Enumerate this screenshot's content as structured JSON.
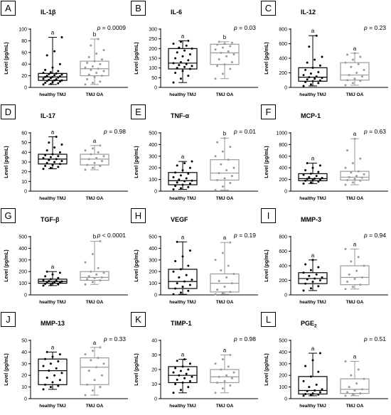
{
  "figure": {
    "group_labels": [
      "healthy TMJ",
      "TMJ OA"
    ],
    "colors": {
      "healthy": "#000000",
      "oa": "#9a9a9a"
    }
  },
  "chart_data": [
    {
      "type": "boxplot",
      "panel": "A",
      "title": "IL-1β",
      "ylabel": "Level (pg/mL)",
      "pvalue": "p = 0.0009",
      "ylim": [
        0,
        100
      ],
      "yticks": [
        0,
        20,
        40,
        60,
        80,
        100
      ],
      "letters": [
        "a",
        "b"
      ],
      "series": [
        {
          "name": "healthy TMJ",
          "whisker_low": 5,
          "q1": 12,
          "median": 18,
          "q3": 24,
          "whisker_high": 86,
          "points": [
            5,
            6,
            7,
            8,
            9,
            10,
            11,
            12,
            12,
            13,
            14,
            15,
            16,
            17,
            18,
            18,
            19,
            20,
            21,
            22,
            23,
            24,
            25,
            26,
            28,
            30,
            34,
            40,
            55,
            62,
            86
          ]
        },
        {
          "name": "TMJ OA",
          "whisker_low": 5,
          "q1": 20,
          "median": 32,
          "q3": 45,
          "whisker_high": 83,
          "points": [
            5,
            8,
            10,
            14,
            18,
            20,
            22,
            25,
            28,
            30,
            32,
            34,
            36,
            40,
            42,
            45,
            48,
            52,
            58,
            64,
            72,
            83
          ]
        }
      ]
    },
    {
      "type": "boxplot",
      "panel": "B",
      "title": "IL-6",
      "ylabel": "Level (pg/mL)",
      "pvalue": "p = 0.03",
      "ylim": [
        0,
        300
      ],
      "yticks": [
        0,
        50,
        100,
        150,
        200,
        250,
        300
      ],
      "letters": [
        "a",
        "b"
      ],
      "series": [
        {
          "name": "healthy TMJ",
          "whisker_low": 25,
          "q1": 95,
          "median": 125,
          "q3": 200,
          "whisker_high": 240,
          "points": [
            25,
            45,
            60,
            75,
            85,
            95,
            100,
            105,
            110,
            115,
            120,
            125,
            130,
            140,
            150,
            160,
            170,
            180,
            190,
            200,
            205,
            215,
            225,
            235,
            240
          ]
        },
        {
          "name": "TMJ OA",
          "whisker_low": 45,
          "q1": 118,
          "median": 178,
          "q3": 222,
          "whisker_high": 235,
          "points": [
            45,
            70,
            95,
            110,
            118,
            130,
            145,
            160,
            170,
            178,
            185,
            195,
            205,
            212,
            220,
            225,
            230,
            235
          ]
        }
      ]
    },
    {
      "type": "boxplot",
      "panel": "C",
      "title": "IL-12",
      "ylabel": "Level (pg/mL)",
      "pvalue": "p = 0.23",
      "ylim": [
        0,
        800
      ],
      "yticks": [
        0,
        200,
        400,
        600,
        800
      ],
      "letters": [
        "a",
        "a"
      ],
      "series": [
        {
          "name": "healthy TMJ",
          "whisker_low": 20,
          "q1": 85,
          "median": 140,
          "q3": 270,
          "whisker_high": 710,
          "points": [
            20,
            40,
            60,
            75,
            85,
            95,
            110,
            120,
            130,
            140,
            150,
            170,
            190,
            210,
            240,
            270,
            300,
            340,
            380,
            420,
            560,
            710
          ]
        },
        {
          "name": "TMJ OA",
          "whisker_low": 30,
          "q1": 100,
          "median": 170,
          "q3": 340,
          "whisker_high": 470,
          "points": [
            30,
            60,
            90,
            100,
            120,
            150,
            170,
            200,
            240,
            280,
            320,
            340,
            380,
            420,
            450,
            470
          ]
        }
      ]
    },
    {
      "type": "boxplot",
      "panel": "D",
      "title": "IL-17",
      "ylabel": "Level (pg/mL)",
      "pvalue": "p = 0.98",
      "ylim": [
        0,
        60
      ],
      "yticks": [
        0,
        10,
        20,
        30,
        40,
        50,
        60
      ],
      "letters": [
        "a",
        "a"
      ],
      "series": [
        {
          "name": "healthy TMJ",
          "whisker_low": 23,
          "q1": 28,
          "median": 33,
          "q3": 38,
          "whisker_high": 56,
          "points": [
            23,
            24,
            25,
            26,
            27,
            28,
            29,
            30,
            31,
            32,
            33,
            34,
            35,
            36,
            37,
            38,
            40,
            42,
            45,
            48,
            50,
            56
          ]
        },
        {
          "name": "TMJ OA",
          "whisker_low": 22,
          "q1": 27,
          "median": 33,
          "q3": 38,
          "whisker_high": 47,
          "points": [
            22,
            24,
            26,
            27,
            29,
            31,
            33,
            34,
            36,
            38,
            40,
            42,
            44,
            47
          ]
        }
      ]
    },
    {
      "type": "boxplot",
      "panel": "E",
      "title": "TNF-α",
      "ylabel": "Level (pg/mL)",
      "pvalue": "p = 0.01",
      "ylim": [
        0,
        500
      ],
      "yticks": [
        0,
        100,
        200,
        300,
        400,
        500
      ],
      "letters": [
        "a",
        "b"
      ],
      "series": [
        {
          "name": "healthy TMJ",
          "whisker_low": 15,
          "q1": 55,
          "median": 90,
          "q3": 160,
          "whisker_high": 255,
          "points": [
            15,
            25,
            35,
            45,
            55,
            65,
            75,
            85,
            90,
            100,
            110,
            120,
            135,
            150,
            160,
            180,
            200,
            220,
            240,
            255
          ]
        },
        {
          "name": "TMJ OA",
          "whisker_low": 10,
          "q1": 95,
          "median": 155,
          "q3": 270,
          "whisker_high": 455,
          "points": [
            10,
            40,
            70,
            95,
            110,
            130,
            155,
            180,
            200,
            230,
            270,
            300,
            340,
            380,
            420,
            455
          ]
        }
      ]
    },
    {
      "type": "boxplot",
      "panel": "F",
      "title": "MCP-1",
      "ylabel": "Level (pg/mL)",
      "pvalue": "p = 0.63",
      "ylim": [
        0,
        1000
      ],
      "yticks": [
        0,
        200,
        400,
        600,
        800,
        1000
      ],
      "letters": [
        "a",
        "a"
      ],
      "series": [
        {
          "name": "healthy TMJ",
          "whisker_low": 130,
          "q1": 180,
          "median": 215,
          "q3": 300,
          "whisker_high": 480,
          "points": [
            130,
            150,
            165,
            180,
            190,
            200,
            210,
            215,
            225,
            240,
            260,
            280,
            300,
            330,
            360,
            400,
            440,
            480
          ]
        },
        {
          "name": "TMJ OA",
          "whisker_low": 110,
          "q1": 190,
          "median": 240,
          "q3": 340,
          "whisker_high": 900,
          "points": [
            110,
            150,
            180,
            190,
            210,
            230,
            240,
            260,
            290,
            320,
            340,
            400,
            480,
            560,
            700,
            900
          ]
        }
      ]
    },
    {
      "type": "boxplot",
      "panel": "G",
      "title": "TGF-β",
      "ylabel": "Level (pg/mL)",
      "pvalue": "p < 0.0001",
      "ylim": [
        0,
        500
      ],
      "yticks": [
        0,
        100,
        200,
        300,
        400,
        500
      ],
      "letters": [
        "a",
        "b"
      ],
      "series": [
        {
          "name": "healthy TMJ",
          "whisker_low": 80,
          "q1": 100,
          "median": 115,
          "q3": 135,
          "whisker_high": 200,
          "points": [
            80,
            85,
            90,
            95,
            100,
            105,
            110,
            112,
            115,
            118,
            122,
            128,
            135,
            145,
            160,
            175,
            190,
            200
          ]
        },
        {
          "name": "TMJ OA",
          "whisker_low": 90,
          "q1": 125,
          "median": 150,
          "q3": 200,
          "whisker_high": 460,
          "points": [
            90,
            110,
            125,
            135,
            145,
            150,
            160,
            175,
            190,
            200,
            230,
            280,
            350,
            460
          ]
        }
      ]
    },
    {
      "type": "boxplot",
      "panel": "H",
      "title": "VEGF",
      "ylabel": "Level (pg/mL)",
      "pvalue": "p = 0.19",
      "ylim": [
        0,
        500
      ],
      "yticks": [
        0,
        100,
        200,
        300,
        400,
        500
      ],
      "letters": [
        "a",
        "a"
      ],
      "series": [
        {
          "name": "healthy TMJ",
          "whisker_low": 5,
          "q1": 55,
          "median": 115,
          "q3": 220,
          "whisker_high": 455,
          "points": [
            5,
            20,
            35,
            55,
            70,
            85,
            100,
            115,
            130,
            150,
            170,
            200,
            220,
            250,
            290,
            330,
            380,
            455
          ]
        },
        {
          "name": "TMJ OA",
          "whisker_low": 5,
          "q1": 25,
          "median": 100,
          "q3": 180,
          "whisker_high": 450,
          "points": [
            5,
            15,
            25,
            45,
            70,
            100,
            120,
            150,
            180,
            210,
            250,
            300,
            360,
            450
          ]
        }
      ]
    },
    {
      "type": "boxplot",
      "panel": "I",
      "title": "MMP-3",
      "ylabel": "Level (pg/mL)",
      "pvalue": "p = 0.94",
      "ylim": [
        0,
        800
      ],
      "yticks": [
        0,
        200,
        400,
        600,
        800
      ],
      "letters": [
        "a",
        "a"
      ],
      "series": [
        {
          "name": "healthy TMJ",
          "whisker_low": 60,
          "q1": 155,
          "median": 225,
          "q3": 305,
          "whisker_high": 480,
          "points": [
            60,
            90,
            120,
            155,
            180,
            200,
            215,
            225,
            240,
            260,
            280,
            305,
            340,
            380,
            420,
            480
          ]
        },
        {
          "name": "TMJ OA",
          "whisker_low": 80,
          "q1": 140,
          "median": 240,
          "q3": 400,
          "whisker_high": 630,
          "points": [
            80,
            110,
            140,
            180,
            220,
            240,
            280,
            330,
            400,
            460,
            520,
            630
          ]
        }
      ]
    },
    {
      "type": "boxplot",
      "panel": "J",
      "title": "MMP-13",
      "ylabel": "Level (pg/mL)",
      "pvalue": "p = 0.33",
      "ylim": [
        0,
        50
      ],
      "yticks": [
        0,
        10,
        20,
        30,
        40,
        50
      ],
      "letters": [
        "a",
        "a"
      ],
      "series": [
        {
          "name": "healthy TMJ",
          "whisker_low": 8,
          "q1": 12,
          "median": 24,
          "q3": 34,
          "whisker_high": 40,
          "points": [
            8,
            10,
            11,
            12,
            14,
            16,
            18,
            20,
            22,
            24,
            26,
            28,
            30,
            32,
            34,
            36,
            38,
            40
          ]
        },
        {
          "name": "TMJ OA",
          "whisker_low": 3,
          "q1": 12,
          "median": 27,
          "q3": 35,
          "whisker_high": 44,
          "points": [
            3,
            7,
            10,
            12,
            16,
            20,
            24,
            27,
            30,
            33,
            35,
            38,
            41,
            44
          ]
        }
      ]
    },
    {
      "type": "boxplot",
      "panel": "K",
      "title": "TIMP-1",
      "ylabel": "Level (pg/mL)",
      "pvalue": "p = 0.98",
      "ylim": [
        0,
        40
      ],
      "yticks": [
        0,
        10,
        20,
        30,
        40
      ],
      "letters": [
        "a",
        "a"
      ],
      "series": [
        {
          "name": "healthy TMJ",
          "whisker_low": 4,
          "q1": 11,
          "median": 16,
          "q3": 22,
          "whisker_high": 27,
          "points": [
            4,
            6,
            8,
            10,
            11,
            12,
            13,
            14,
            15,
            16,
            17,
            18,
            19,
            20,
            21,
            22,
            24,
            26,
            27
          ]
        },
        {
          "name": "TMJ OA",
          "whisker_low": 4,
          "q1": 11,
          "median": 15,
          "q3": 20,
          "whisker_high": 30,
          "points": [
            4,
            7,
            9,
            11,
            12,
            14,
            15,
            16,
            18,
            20,
            22,
            24,
            27,
            30
          ]
        }
      ]
    },
    {
      "type": "boxplot",
      "panel": "L",
      "title": "PGE",
      "title_sub": "2",
      "ylabel": "Level (pg/mL)",
      "pvalue": "p = 0.51",
      "ylim": [
        0,
        500
      ],
      "yticks": [
        0,
        100,
        200,
        300,
        400,
        500
      ],
      "letters": [
        "a",
        "a"
      ],
      "series": [
        {
          "name": "healthy TMJ",
          "whisker_low": 25,
          "q1": 40,
          "median": 70,
          "q3": 190,
          "whisker_high": 390,
          "points": [
            25,
            30,
            35,
            40,
            45,
            55,
            65,
            70,
            80,
            100,
            120,
            150,
            190,
            230,
            280,
            330,
            390
          ]
        },
        {
          "name": "TMJ OA",
          "whisker_low": 25,
          "q1": 45,
          "median": 80,
          "q3": 170,
          "whisker_high": 320,
          "points": [
            25,
            35,
            45,
            55,
            70,
            80,
            100,
            130,
            170,
            200,
            250,
            320
          ]
        }
      ]
    }
  ]
}
